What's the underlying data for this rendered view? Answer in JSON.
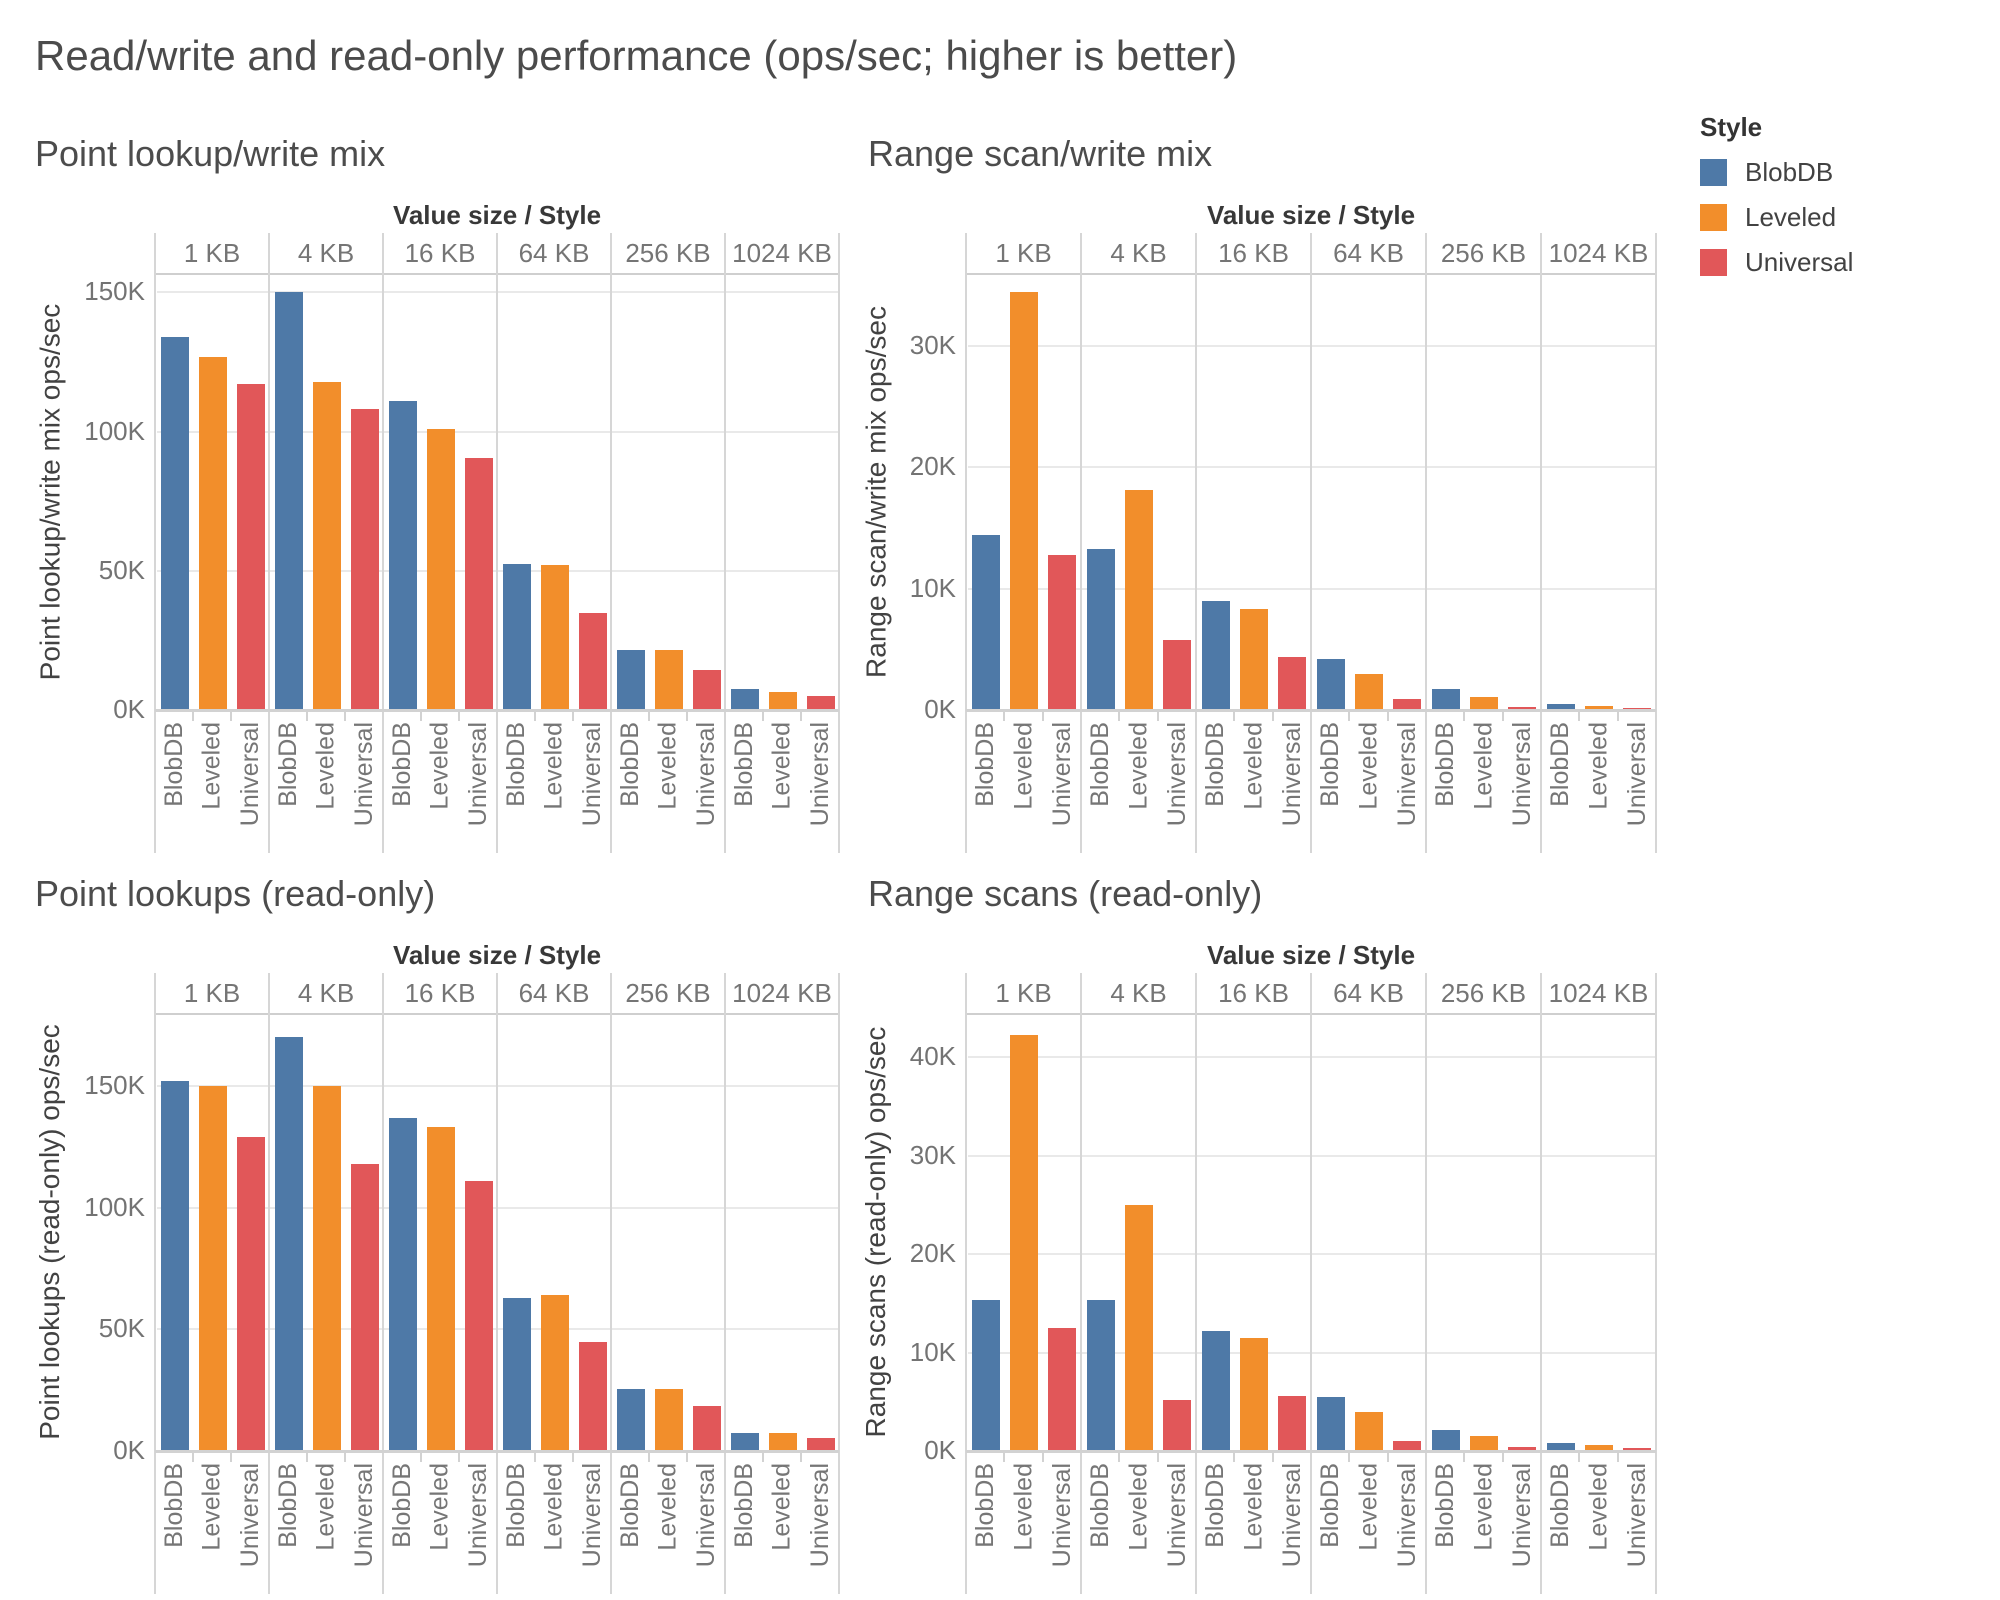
{
  "page_title": "Read/write and read-only performance (ops/sec; higher is better)",
  "legend": {
    "title": "Style",
    "items": [
      {
        "label": "BlobDB",
        "color": "#4e79a7"
      },
      {
        "label": "Leveled",
        "color": "#f28e2b"
      },
      {
        "label": "Universal",
        "color": "#e15759"
      }
    ]
  },
  "colors": {
    "blobdb_blue": "#4e79a7",
    "leveled_orange": "#f28e2b",
    "universal_red": "#e15759",
    "gridline": "#e9e9e9",
    "axis_line": "#d2d2d2",
    "title_text": "#4c4c4c",
    "tick_text": "#757575"
  },
  "chart_data": [
    {
      "id": "point-lookup-write-mix",
      "type": "bar",
      "title": "Point lookup/write mix",
      "column_header": "Value size  /  Style",
      "ylabel": "Point lookup/write mix ops/sec",
      "unit": "thousands of ops/sec (K)",
      "grid": true,
      "categories": [
        "1 KB",
        "4 KB",
        "16 KB",
        "64 KB",
        "256 KB",
        "1024 KB"
      ],
      "bar_labels": [
        "BlobDB",
        "Leveled",
        "Universal"
      ],
      "series": [
        {
          "name": "BlobDB",
          "values": [
            134,
            150,
            111,
            52.5,
            21.5,
            7.5
          ]
        },
        {
          "name": "Leveled",
          "values": [
            127,
            118,
            101,
            52,
            21.5,
            6.5
          ]
        },
        {
          "name": "Universal",
          "values": [
            117,
            108,
            90.5,
            35,
            14.5,
            5
          ]
        }
      ],
      "ytick_values": [
        0,
        50,
        100,
        150
      ],
      "ytick_labels": [
        "0K",
        "50K",
        "100K",
        "150K"
      ],
      "ylim": [
        0,
        157
      ]
    },
    {
      "id": "range-scan-write-mix",
      "type": "bar",
      "title": "Range scan/write mix",
      "column_header": "Value size  /  Style",
      "ylabel": "Range scan/write mix ops/sec",
      "unit": "thousands of ops/sec (K)",
      "grid": true,
      "categories": [
        "1 KB",
        "4 KB",
        "16 KB",
        "64 KB",
        "256 KB",
        "1024 KB"
      ],
      "bar_labels": [
        "BlobDB",
        "Leveled",
        "Universal"
      ],
      "series": [
        {
          "name": "BlobDB",
          "values": [
            14.4,
            13.3,
            9.0,
            4.2,
            1.7,
            0.5
          ]
        },
        {
          "name": "Leveled",
          "values": [
            34.4,
            18.1,
            8.3,
            3.0,
            1.1,
            0.35
          ]
        },
        {
          "name": "Universal",
          "values": [
            12.8,
            5.8,
            4.4,
            0.9,
            0.25,
            0.1
          ]
        }
      ],
      "ytick_values": [
        0,
        10,
        20,
        30
      ],
      "ytick_labels": [
        "0K",
        "10K",
        "20K",
        "30K"
      ],
      "ylim": [
        0,
        36
      ]
    },
    {
      "id": "point-lookups-read-only",
      "type": "bar",
      "title": "Point lookups (read-only)",
      "column_header": "Value size  /  Style",
      "ylabel": "Point lookups (read-only) ops/sec",
      "unit": "thousands of ops/sec (K)",
      "grid": true,
      "categories": [
        "1 KB",
        "4 KB",
        "16 KB",
        "64 KB",
        "256 KB",
        "1024 KB"
      ],
      "bar_labels": [
        "BlobDB",
        "Leveled",
        "Universal"
      ],
      "series": [
        {
          "name": "BlobDB",
          "values": [
            152,
            170,
            137,
            63,
            25.5,
            7.5
          ]
        },
        {
          "name": "Leveled",
          "values": [
            150,
            150,
            133,
            64,
            25.5,
            7.5
          ]
        },
        {
          "name": "Universal",
          "values": [
            129,
            118,
            111,
            45,
            18.5,
            5.5
          ]
        }
      ],
      "ytick_values": [
        0,
        50,
        100,
        150
      ],
      "ytick_labels": [
        "0K",
        "50K",
        "100K",
        "150K"
      ],
      "ylim": [
        0,
        180
      ]
    },
    {
      "id": "range-scans-read-only",
      "type": "bar",
      "title": "Range scans (read-only)",
      "column_header": "Value size  /  Style",
      "ylabel": "Range scans (read-only) ops/sec",
      "unit": "thousands of ops/sec (K)",
      "grid": true,
      "categories": [
        "1 KB",
        "4 KB",
        "16 KB",
        "64 KB",
        "256 KB",
        "1024 KB"
      ],
      "bar_labels": [
        "BlobDB",
        "Leveled",
        "Universal"
      ],
      "series": [
        {
          "name": "BlobDB",
          "values": [
            15.3,
            15.3,
            12.2,
            5.5,
            2.1,
            0.8
          ]
        },
        {
          "name": "Leveled",
          "values": [
            42.3,
            25.0,
            11.5,
            4.0,
            1.5,
            0.6
          ]
        },
        {
          "name": "Universal",
          "values": [
            12.5,
            5.2,
            5.6,
            1.0,
            0.4,
            0.3
          ]
        }
      ],
      "ytick_values": [
        0,
        10,
        20,
        30,
        40
      ],
      "ytick_labels": [
        "0K",
        "10K",
        "20K",
        "30K",
        "40K"
      ],
      "ylim": [
        0,
        44.5
      ]
    }
  ]
}
